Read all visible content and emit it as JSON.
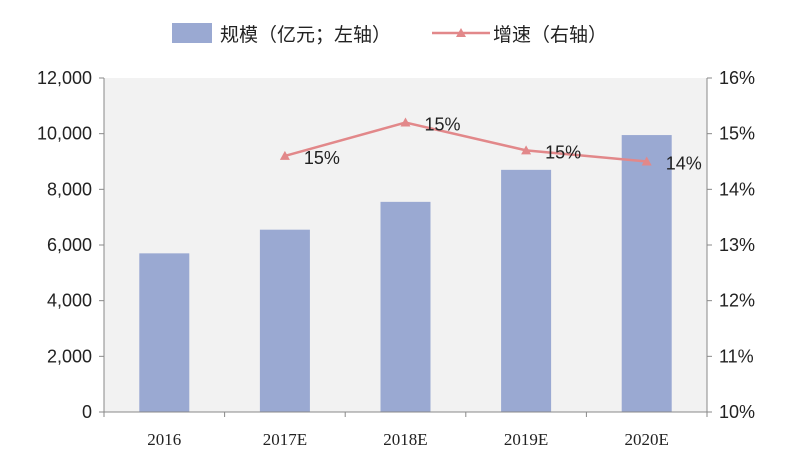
{
  "chart_data": {
    "type": "bar+line",
    "categories": [
      "2016",
      "2017E",
      "2018E",
      "2019E",
      "2020E"
    ],
    "series": [
      {
        "name": "规模（亿元；左轴）",
        "type": "bar",
        "axis": "left",
        "values": [
          5700,
          6550,
          7550,
          8700,
          9950
        ],
        "color": "#9aa9d2"
      },
      {
        "name": "增速（右轴）",
        "type": "line",
        "axis": "right",
        "values": [
          null,
          14.6,
          15.2,
          14.7,
          14.5
        ],
        "labels": [
          "",
          "15%",
          "15%",
          "15%",
          "14%"
        ],
        "color": "#e2888a"
      }
    ],
    "y_left": {
      "ticks": [
        "0",
        "2,000",
        "4,000",
        "6,000",
        "8,000",
        "10,000",
        "12,000"
      ],
      "ylim": [
        0,
        12000
      ]
    },
    "y_right": {
      "ticks": [
        "10%",
        "11%",
        "12%",
        "13%",
        "14%",
        "15%",
        "16%"
      ],
      "ylim": [
        10,
        16
      ]
    },
    "legend": "top",
    "grid": false,
    "plot_background": "#f2f2f2"
  }
}
